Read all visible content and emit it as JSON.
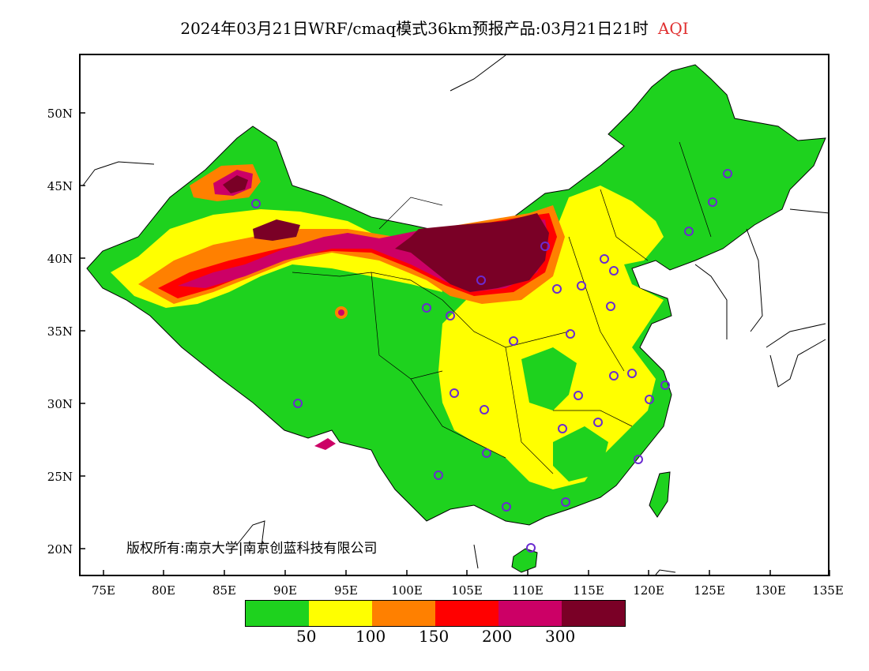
{
  "title": {
    "main": "2024年03月21日WRF/cmaq模式36km预报产品:03月21日21时",
    "pollutant": "AQI",
    "pollutant_color": "#e03030"
  },
  "axes": {
    "lat_ticks": [
      "50N",
      "45N",
      "40N",
      "35N",
      "30N",
      "25N",
      "20N"
    ],
    "lon_ticks": [
      "75E",
      "80E",
      "85E",
      "90E",
      "95E",
      "100E",
      "105E",
      "110E",
      "115E",
      "120E",
      "125E",
      "130E",
      "135E"
    ]
  },
  "copyright": "版权所有:南京大学|南京创蓝科技有限公司",
  "legend": {
    "colors": [
      "#1ed21e",
      "#ffff00",
      "#ff8000",
      "#ff0000",
      "#cc0066",
      "#7a0026"
    ],
    "labels": [
      "50",
      "100",
      "150",
      "200",
      "300"
    ]
  }
}
